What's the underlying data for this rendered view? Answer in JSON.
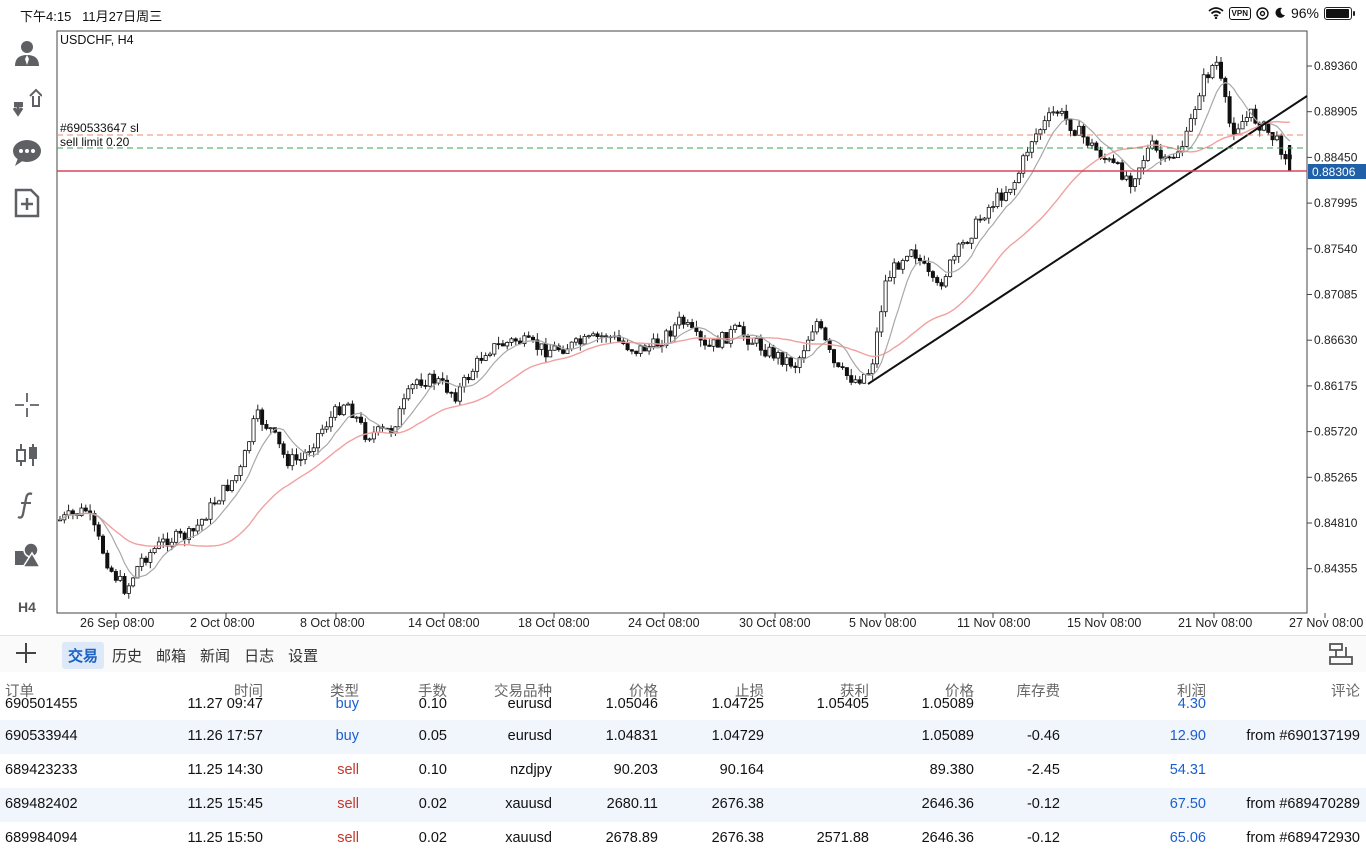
{
  "status_bar": {
    "time": "下午4:15",
    "date": "11月27日周三",
    "vpn": "VPN",
    "battery": "96%",
    "battery_fraction": 0.96
  },
  "toolbar": {
    "icons": [
      "person-icon",
      "order-arrows-icon",
      "chat-icon",
      "new-document-icon",
      "crosshair-icon",
      "candlestick-icon",
      "function-icon",
      "objects-icon"
    ],
    "timeframe": "H4"
  },
  "chart": {
    "symbol_label": "USDCHF, H4",
    "order_sl_label": "#690533647 sl",
    "sell_limit_label": "sell limit 0.20",
    "current_price": "0.88306",
    "price_axis": [
      "0.89360",
      "0.88905",
      "0.88450",
      "0.87995",
      "0.87540",
      "0.87085",
      "0.86630",
      "0.86175",
      "0.85720",
      "0.85265",
      "0.84810",
      "0.84355"
    ],
    "time_axis": [
      "26 Sep 08:00",
      "2 Oct 08:00",
      "8 Oct 08:00",
      "14 Oct 08:00",
      "18 Oct 08:00",
      "24 Oct 08:00",
      "30 Oct 08:00",
      "5 Nov 08:00",
      "11 Nov 08:00",
      "15 Nov 08:00",
      "21 Nov 08:00",
      "27 Nov 08:00"
    ],
    "colors": {
      "current_line": "#d9475b",
      "sl_line": "#f08a6b",
      "limit_line": "#3aa657",
      "ma_slow": "#f2a0a0",
      "ma_fast": "#a8a8a8",
      "price_tag": "#2060a8"
    }
  },
  "tabs": {
    "add_label": "+",
    "items": [
      {
        "label": "交易",
        "active": true
      },
      {
        "label": "历史",
        "active": false
      },
      {
        "label": "邮箱",
        "active": false
      },
      {
        "label": "新闻",
        "active": false
      },
      {
        "label": "日志",
        "active": false
      },
      {
        "label": "设置",
        "active": false
      }
    ]
  },
  "table": {
    "headers": {
      "order": "订单",
      "time": "时间",
      "type": "类型",
      "lots": "手数",
      "symbol": "交易品种",
      "price": "价格",
      "sl": "止损",
      "tp": "获利",
      "current": "价格",
      "swap": "库存费",
      "profit": "利润",
      "comment": "评论"
    },
    "partial_row": {
      "order": "690501455",
      "time": "11.27 09:47",
      "type": "buy",
      "lots": "0.10",
      "symbol": "eurusd",
      "price": "1.05046",
      "sl": "1.04725",
      "tp": "1.05405",
      "current": "1.05089",
      "swap": "",
      "profit": "4.30",
      "comment": ""
    },
    "rows": [
      {
        "order": "690533944",
        "time": "11.26 17:57",
        "type": "buy",
        "lots": "0.05",
        "symbol": "eurusd",
        "price": "1.04831",
        "sl": "1.04729",
        "tp": "",
        "current": "1.05089",
        "swap": "-0.46",
        "profit": "12.90",
        "comment": "from #690137199"
      },
      {
        "order": "689423233",
        "time": "11.25 14:30",
        "type": "sell",
        "lots": "0.10",
        "symbol": "nzdjpy",
        "price": "90.203",
        "sl": "90.164",
        "tp": "",
        "current": "89.380",
        "swap": "-2.45",
        "profit": "54.31",
        "comment": ""
      },
      {
        "order": "689482402",
        "time": "11.25 15:45",
        "type": "sell",
        "lots": "0.02",
        "symbol": "xauusd",
        "price": "2680.11",
        "sl": "2676.38",
        "tp": "",
        "current": "2646.36",
        "swap": "-0.12",
        "profit": "67.50",
        "comment": "from #689470289"
      },
      {
        "order": "689984094",
        "time": "11.25 15:50",
        "type": "sell",
        "lots": "0.02",
        "symbol": "xauusd",
        "price": "2678.89",
        "sl": "2676.38",
        "tp": "2571.88",
        "current": "2646.36",
        "swap": "-0.12",
        "profit": "65.06",
        "comment": "from #689472930"
      }
    ]
  }
}
